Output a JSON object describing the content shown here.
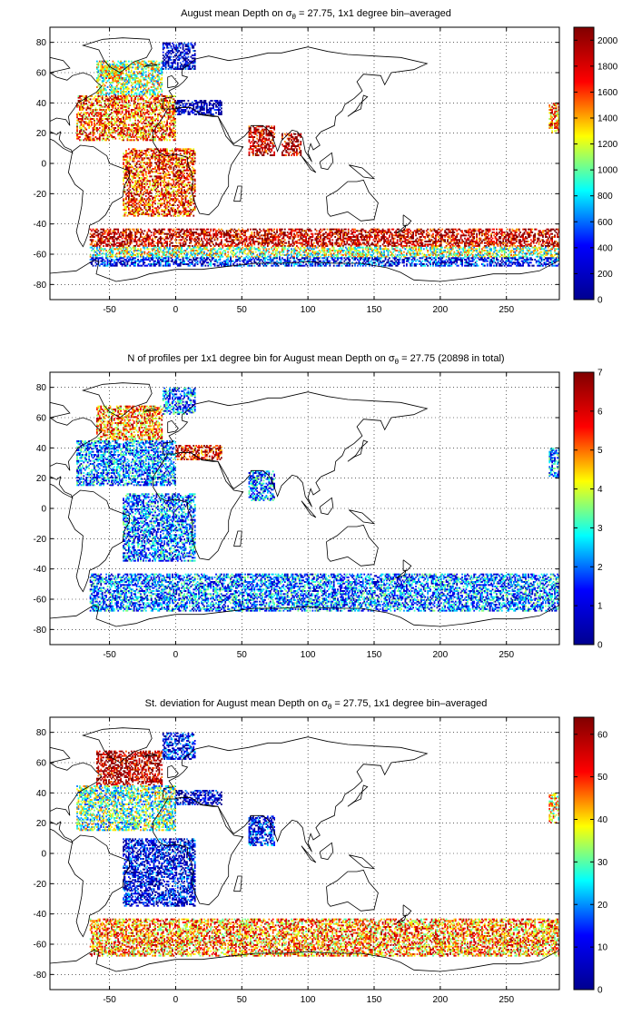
{
  "chart_data": [
    {
      "type": "heatmap",
      "title_parts": [
        "August mean Depth on ",
        "σ",
        "θ",
        " = 27.75, 1x1 degree bin–averaged"
      ],
      "xlabel": "",
      "ylabel": "",
      "x_ticks": [
        -50,
        0,
        50,
        100,
        150,
        200,
        250
      ],
      "y_ticks": [
        -80,
        -60,
        -40,
        -20,
        0,
        20,
        40,
        60,
        80
      ],
      "xlim": [
        -95,
        290
      ],
      "ylim": [
        -90,
        90
      ],
      "grid": true,
      "colorbar": {
        "range": [
          0,
          2100
        ],
        "ticks": [
          0,
          200,
          400,
          600,
          800,
          1000,
          1200,
          1400,
          1600,
          1800,
          2000
        ]
      },
      "colormap": [
        "#00008f",
        "#0000ff",
        "#00ffff",
        "#ffff00",
        "#ff0000",
        "#800000"
      ],
      "regions": [
        {
          "name": "north-atlantic-subpolar",
          "lon": [
            -60,
            -10
          ],
          "lat": [
            45,
            68
          ],
          "value": 1100
        },
        {
          "name": "labrador-sea",
          "lon": [
            -58,
            -40
          ],
          "lat": [
            55,
            65
          ],
          "value": 1250
        },
        {
          "name": "north-atlantic-subtropical",
          "lon": [
            -75,
            0
          ],
          "lat": [
            15,
            45
          ],
          "value": 1550
        },
        {
          "name": "nordic-seas",
          "lon": [
            -10,
            15
          ],
          "lat": [
            62,
            80
          ],
          "value": 150
        },
        {
          "name": "mediterranean",
          "lon": [
            0,
            35
          ],
          "lat": [
            32,
            42
          ],
          "value": 100
        },
        {
          "name": "arabian-sea",
          "lon": [
            55,
            75
          ],
          "lat": [
            5,
            25
          ],
          "value": 1950
        },
        {
          "name": "bay-of-bengal",
          "lon": [
            80,
            95
          ],
          "lat": [
            5,
            20
          ],
          "value": 1950
        },
        {
          "name": "equatorial-south-atlantic",
          "lon": [
            -40,
            15
          ],
          "lat": [
            -35,
            10
          ],
          "value": 1650
        },
        {
          "name": "southern-ocean-north-band",
          "lon": [
            -65,
            290
          ],
          "lat": [
            -55,
            -43
          ],
          "value": 1900
        },
        {
          "name": "southern-ocean-mid-band",
          "lon": [
            -65,
            290
          ],
          "lat": [
            -62,
            -55
          ],
          "value": 1100
        },
        {
          "name": "southern-ocean-south-band",
          "lon": [
            -65,
            290
          ],
          "lat": [
            -68,
            -62
          ],
          "value": 350
        },
        {
          "name": "north-pacific-east-edge",
          "lon": [
            282,
            290
          ],
          "lat": [
            20,
            40
          ],
          "value": 1550
        }
      ]
    },
    {
      "type": "heatmap",
      "title_parts": [
        "N of profiles per 1x1 degree bin for August mean Depth on ",
        "σ",
        "θ",
        " = 27.75 (20898 in total)"
      ],
      "xlabel": "",
      "ylabel": "",
      "x_ticks": [
        -50,
        0,
        50,
        100,
        150,
        200,
        250
      ],
      "y_ticks": [
        -80,
        -60,
        -40,
        -20,
        0,
        20,
        40,
        60,
        80
      ],
      "xlim": [
        -95,
        290
      ],
      "ylim": [
        -90,
        90
      ],
      "grid": true,
      "colorbar": {
        "range": [
          0,
          7
        ],
        "ticks": [
          0,
          1,
          2,
          3,
          4,
          5,
          6,
          7
        ]
      },
      "colormap": [
        "#00008f",
        "#0000ff",
        "#00ffff",
        "#ffff00",
        "#ff0000",
        "#800000"
      ],
      "regions": [
        {
          "name": "north-atlantic-subpolar",
          "lon": [
            -60,
            -10
          ],
          "lat": [
            45,
            68
          ],
          "value": 5
        },
        {
          "name": "north-atlantic-subtropical",
          "lon": [
            -75,
            0
          ],
          "lat": [
            15,
            45
          ],
          "value": 2
        },
        {
          "name": "nordic-seas",
          "lon": [
            -10,
            15
          ],
          "lat": [
            62,
            80
          ],
          "value": 2
        },
        {
          "name": "mediterranean",
          "lon": [
            0,
            35
          ],
          "lat": [
            32,
            42
          ],
          "value": 6
        },
        {
          "name": "arabian-sea",
          "lon": [
            55,
            75
          ],
          "lat": [
            5,
            25
          ],
          "value": 2
        },
        {
          "name": "equatorial-south-atlantic",
          "lon": [
            -40,
            15
          ],
          "lat": [
            -35,
            10
          ],
          "value": 2
        },
        {
          "name": "southern-ocean-band",
          "lon": [
            -65,
            290
          ],
          "lat": [
            -68,
            -43
          ],
          "value": 2
        },
        {
          "name": "north-pacific-east-edge",
          "lon": [
            282,
            290
          ],
          "lat": [
            20,
            40
          ],
          "value": 2
        }
      ]
    },
    {
      "type": "heatmap",
      "title_parts": [
        "St. deviation for August mean Depth on ",
        "σ",
        "θ",
        " = 27.75, 1x1 degree bin–averaged"
      ],
      "xlabel": "",
      "ylabel": "",
      "x_ticks": [
        -50,
        0,
        50,
        100,
        150,
        200,
        250
      ],
      "y_ticks": [
        -80,
        -60,
        -40,
        -20,
        0,
        20,
        40,
        60,
        80
      ],
      "xlim": [
        -95,
        290
      ],
      "ylim": [
        -90,
        90
      ],
      "grid": true,
      "colorbar": {
        "range": [
          0,
          64
        ],
        "ticks": [
          0,
          10,
          20,
          30,
          40,
          50,
          60
        ]
      },
      "colormap": [
        "#00008f",
        "#0000ff",
        "#00ffff",
        "#ffff00",
        "#ff0000",
        "#800000"
      ],
      "regions": [
        {
          "name": "north-atlantic-subpolar",
          "lon": [
            -60,
            -10
          ],
          "lat": [
            45,
            68
          ],
          "value": 60
        },
        {
          "name": "north-atlantic-subtropical",
          "lon": [
            -75,
            0
          ],
          "lat": [
            15,
            45
          ],
          "value": 30
        },
        {
          "name": "nordic-seas",
          "lon": [
            -10,
            15
          ],
          "lat": [
            62,
            80
          ],
          "value": 10
        },
        {
          "name": "mediterranean",
          "lon": [
            0,
            35
          ],
          "lat": [
            32,
            42
          ],
          "value": 5
        },
        {
          "name": "arabian-sea",
          "lon": [
            55,
            75
          ],
          "lat": [
            5,
            25
          ],
          "value": 10
        },
        {
          "name": "equatorial-south-atlantic",
          "lon": [
            -40,
            15
          ],
          "lat": [
            -35,
            10
          ],
          "value": 8
        },
        {
          "name": "southern-ocean-band",
          "lon": [
            -65,
            290
          ],
          "lat": [
            -68,
            -43
          ],
          "value": 45
        },
        {
          "name": "north-pacific-east-edge",
          "lon": [
            282,
            290
          ],
          "lat": [
            20,
            40
          ],
          "value": 40
        }
      ]
    }
  ]
}
